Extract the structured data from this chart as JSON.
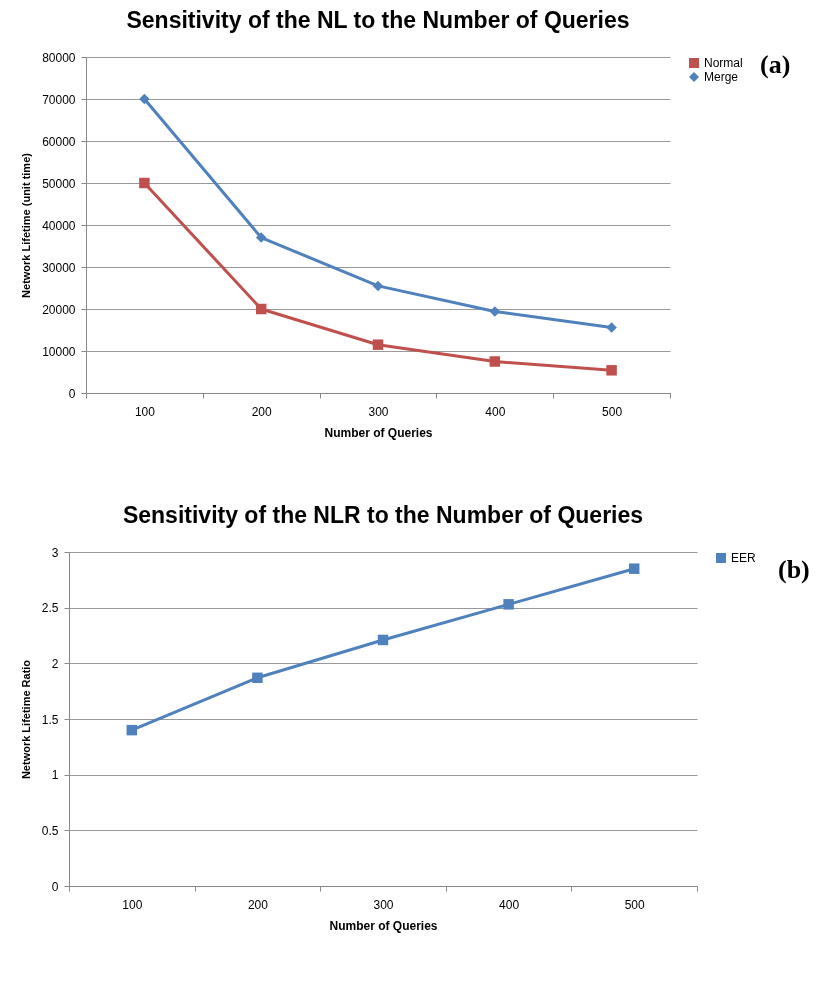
{
  "chart_data": [
    {
      "type": "line",
      "title": "Sensitivity of the NL to the Number of Queries",
      "xlabel": "Number of Queries",
      "ylabel": "Network Lifetime (unit time)",
      "categories": [
        "100",
        "200",
        "300",
        "400",
        "500"
      ],
      "series": [
        {
          "name": "Normal",
          "color": "#c0504d",
          "marker": "square",
          "values": [
            50000,
            20000,
            11500,
            7500,
            5400
          ]
        },
        {
          "name": "Merge",
          "color": "#4f81bd",
          "marker": "diamond",
          "values": [
            70000,
            37000,
            25500,
            19400,
            15600
          ]
        }
      ],
      "ylim": [
        0,
        80000
      ],
      "yticks": [
        0,
        10000,
        20000,
        30000,
        40000,
        50000,
        60000,
        70000,
        80000
      ],
      "grid": "y",
      "legend": "right",
      "annotations": [
        "(a)"
      ]
    },
    {
      "type": "line",
      "title": "Sensitivity of the NLR to the Number of Queries",
      "xlabel": "Number of Queries",
      "ylabel": "Network Lifetime Ratio",
      "categories": [
        "100",
        "200",
        "300",
        "400",
        "500"
      ],
      "series": [
        {
          "name": "EER",
          "color": "#4f81bd",
          "marker": "square",
          "values": [
            1.4,
            1.87,
            2.21,
            2.53,
            2.85
          ]
        }
      ],
      "ylim": [
        0,
        3
      ],
      "yticks": [
        0,
        0.5,
        1,
        1.5,
        2,
        2.5,
        3
      ],
      "grid": "y",
      "legend": "right",
      "annotations": [
        "(b)"
      ]
    }
  ]
}
